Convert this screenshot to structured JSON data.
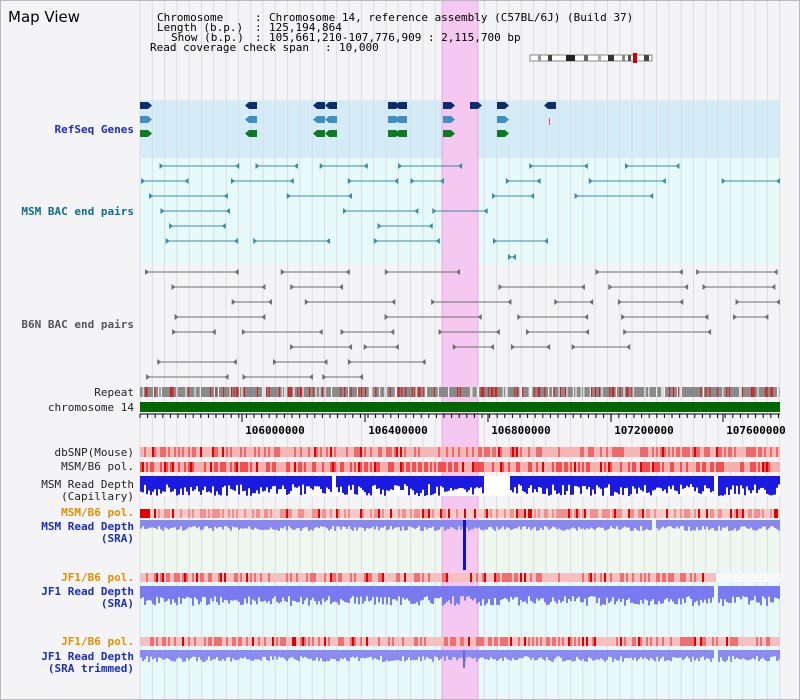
{
  "title": "Map View",
  "header": {
    "chromosome_label": "Chromosome",
    "chromosome_value": "Chromosome 14, reference assembly (C57BL/6J) (Build 37)",
    "length_label": "Length (b.p.)",
    "length_value": "125,194,864",
    "show_label": "Show (b.p.)",
    "show_value": "105,661,210-107,776,909 : 2,115,700 bp",
    "coverage_label": "Read coverage check span",
    "coverage_value": "10,000"
  },
  "tracks": {
    "refseq": "RefSeq Genes",
    "msm_bac": "MSM BAC end pairs",
    "b6n_bac": "B6N BAC end pairs",
    "repeat": "Repeat",
    "chromosome": "chromosome 14",
    "dbsnp": "dbSNP(Mouse)",
    "msm_b6_pol_1": "MSM/B6 pol.",
    "msm_depth_cap_1": "MSM Read Depth",
    "msm_depth_cap_2": "(Capillary)",
    "msm_b6_pol_2": "MSM/B6 pol.",
    "msm_depth_sra_1": "MSM Read Depth",
    "msm_depth_sra_2": "(SRA)",
    "jf1_b6_pol_1": "JF1/B6 pol.",
    "jf1_depth_sra_1": "JF1 Read Depth",
    "jf1_depth_sra_2": "(SRA)",
    "jf1_b6_pol_2": "JF1/B6 pol.",
    "jf1_depth_trim_1": "JF1 Read Depth",
    "jf1_depth_trim_2": "(SRA trimmed)"
  },
  "axis": {
    "ticks": [
      "106000000",
      "106400000",
      "106800000",
      "107200000",
      "107600000"
    ]
  },
  "colors": {
    "highlight": "#f4c8f0",
    "refseq_bg": "#d4ecf8",
    "teal_bg": "#e6fafa",
    "green_bg": "#eef8ee",
    "label_blue": "#1b2fb8",
    "label_teal": "#0b6e8c",
    "label_orange": "#e09000",
    "chromosome": "#006600"
  }
}
